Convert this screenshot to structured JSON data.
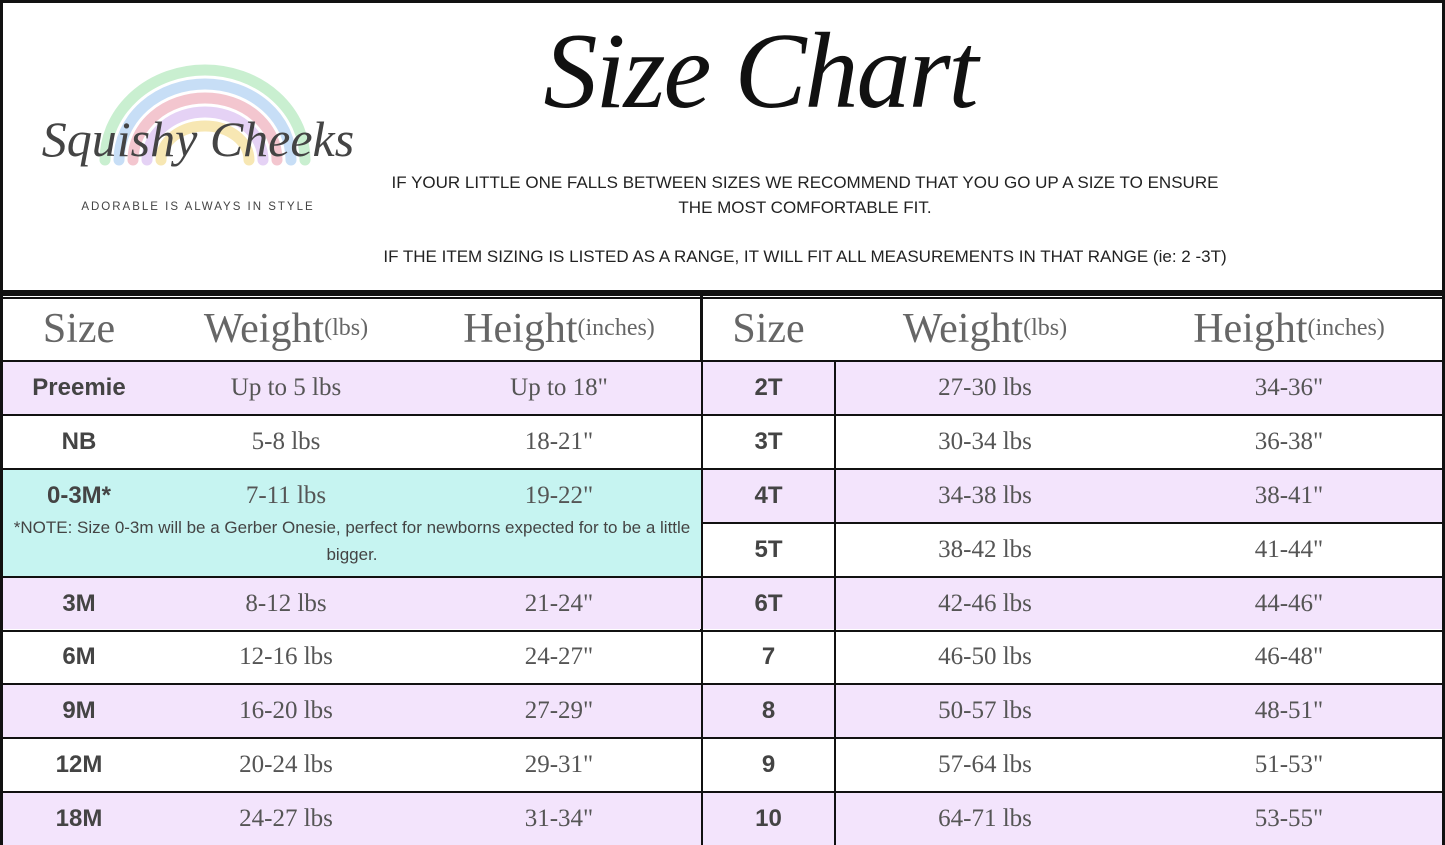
{
  "logo": {
    "name": "Squishy Cheeks",
    "tagline": "ADORABLE IS ALWAYS IN STYLE"
  },
  "header": {
    "title": "Size Chart",
    "notes": [
      "IF YOUR LITTLE ONE FALLS BETWEEN SIZES WE RECOMMEND THAT YOU GO UP A SIZE TO ENSURE THE MOST COMFORTABLE FIT.",
      "IF THE ITEM SIZING IS LISTED AS A RANGE, IT WILL FIT ALL MEASUREMENTS IN THAT RANGE (ie: 2 -3T)"
    ]
  },
  "tables": [
    {
      "columns": [
        {
          "name": "Size"
        },
        {
          "name": "Weight",
          "unit": "(lbs)"
        },
        {
          "name": "Height",
          "unit": "(inches)"
        }
      ],
      "rows": [
        [
          "Preemie",
          "Up to 5 lbs",
          "Up to 18\""
        ],
        [
          "NB",
          "5-8 lbs",
          "18-21\""
        ],
        [
          "0-3M*",
          "7-11 lbs",
          "19-22\"",
          "*NOTE: Size 0-3m will be a Gerber Onesie, perfect for  newborns expected for  to be a little bigger."
        ],
        [
          "3M",
          "8-12 lbs",
          "21-24\""
        ],
        [
          "6M",
          "12-16 lbs",
          "24-27\""
        ],
        [
          "9M",
          "16-20 lbs",
          "27-29\""
        ],
        [
          "12M",
          "20-24 lbs",
          "29-31\""
        ],
        [
          "18M",
          "24-27 lbs",
          "31-34\""
        ]
      ]
    },
    {
      "columns": [
        {
          "name": "Size"
        },
        {
          "name": "Weight",
          "unit": "(lbs)"
        },
        {
          "name": "Height",
          "unit": "(inches)"
        }
      ],
      "rows": [
        [
          "2T",
          "27-30 lbs",
          "34-36\""
        ],
        [
          "3T",
          "30-34 lbs",
          "36-38\""
        ],
        [
          "4T",
          "34-38 lbs",
          "38-41\""
        ],
        [
          "5T",
          "38-42 lbs",
          "41-44\""
        ],
        [
          "6T",
          "42-46 lbs",
          "44-46\""
        ],
        [
          "7",
          "46-50 lbs",
          "46-48\""
        ],
        [
          "8",
          "50-57 lbs",
          "48-51\""
        ],
        [
          "9",
          "57-64 lbs",
          "51-53\""
        ],
        [
          "10",
          "64-71 lbs",
          "53-55\""
        ]
      ]
    }
  ]
}
